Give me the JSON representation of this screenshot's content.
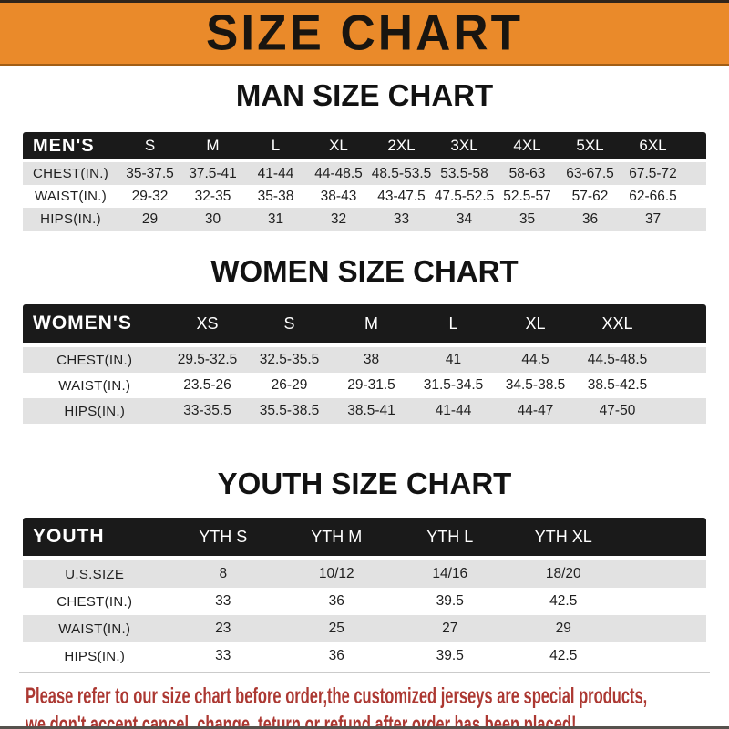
{
  "banner": {
    "title": "SIZE CHART",
    "bg_color": "#EA8A2A",
    "text_color": "#191510"
  },
  "sections": [
    {
      "heading": "MAN SIZE CHART",
      "header_label": "MEN'S",
      "columns": [
        "S",
        "M",
        "L",
        "XL",
        "2XL",
        "3XL",
        "4XL",
        "5XL",
        "6XL"
      ],
      "rows": [
        {
          "label": "CHEST(IN.)",
          "values": [
            "35-37.5",
            "37.5-41",
            "41-44",
            "44-48.5",
            "48.5-53.5",
            "53.5-58",
            "58-63",
            "63-67.5",
            "67.5-72"
          ]
        },
        {
          "label": "WAIST(IN.)",
          "values": [
            "29-32",
            "32-35",
            "35-38",
            "38-43",
            "43-47.5",
            "47.5-52.5",
            "52.5-57",
            "57-62",
            "62-66.5"
          ]
        },
        {
          "label": "HIPS(IN.)",
          "values": [
            "29",
            "30",
            "31",
            "32",
            "33",
            "34",
            "35",
            "36",
            "37"
          ]
        }
      ]
    },
    {
      "heading": "WOMEN SIZE CHART",
      "header_label": "WOMEN'S",
      "columns": [
        "XS",
        "S",
        "M",
        "L",
        "XL",
        "XXL"
      ],
      "rows": [
        {
          "label": "CHEST(IN.)",
          "values": [
            "29.5-32.5",
            "32.5-35.5",
            "38",
            "41",
            "44.5",
            "44.5-48.5"
          ]
        },
        {
          "label": "WAIST(IN.)",
          "values": [
            "23.5-26",
            "26-29",
            "29-31.5",
            "31.5-34.5",
            "34.5-38.5",
            "38.5-42.5"
          ]
        },
        {
          "label": "HIPS(IN.)",
          "values": [
            "33-35.5",
            "35.5-38.5",
            "38.5-41",
            "41-44",
            "44-47",
            "47-50"
          ]
        }
      ]
    },
    {
      "heading": "YOUTH SIZE CHART",
      "header_label": "YOUTH",
      "columns": [
        "YTH S",
        "YTH M",
        "YTH L",
        "YTH XL"
      ],
      "rows": [
        {
          "label": "U.S.SIZE",
          "values": [
            "8",
            "10/12",
            "14/16",
            "18/20"
          ]
        },
        {
          "label": "CHEST(IN.)",
          "values": [
            "33",
            "36",
            "39.5",
            "42.5"
          ]
        },
        {
          "label": "WAIST(IN.)",
          "values": [
            "23",
            "25",
            "27",
            "29"
          ]
        },
        {
          "label": "HIPS(IN.)",
          "values": [
            "33",
            "36",
            "39.5",
            "42.5"
          ]
        }
      ]
    }
  ],
  "footer": {
    "lines": [
      "Please refer to our size chart before order,the customized jerseys are special products,",
      "we don't accept cancel, change, teturn or refund after order has been placed!"
    ],
    "text_color": "#AC3832"
  }
}
